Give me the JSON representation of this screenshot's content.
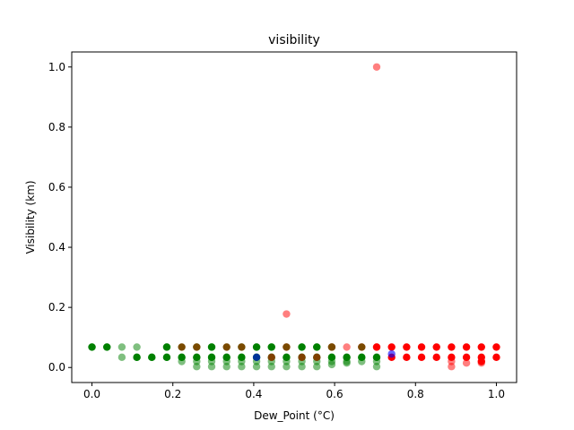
{
  "chart_data": {
    "type": "scatter",
    "title": "visibility",
    "xlabel": "Dew_Point (°C)",
    "ylabel": "Visibility (km)",
    "xlim": [
      -0.05,
      1.05
    ],
    "ylim": [
      -0.05,
      1.05
    ],
    "xticks": [
      "0.0",
      "0.2",
      "0.4",
      "0.6",
      "0.8",
      "1.0"
    ],
    "yticks": [
      "0.0",
      "0.2",
      "0.4",
      "0.6",
      "0.8",
      "1.0"
    ],
    "grid": false,
    "series": [
      {
        "color": "#008000",
        "opacity": 0.5,
        "points": [
          [
            0.0,
            0.068
          ],
          [
            0.037,
            0.068
          ],
          [
            0.074,
            0.068
          ],
          [
            0.074,
            0.034
          ],
          [
            0.111,
            0.068
          ],
          [
            0.111,
            0.034
          ],
          [
            0.148,
            0.034
          ],
          [
            0.185,
            0.068
          ],
          [
            0.185,
            0.034
          ],
          [
            0.222,
            0.034
          ],
          [
            0.222,
            0.02
          ],
          [
            0.259,
            0.068
          ],
          [
            0.259,
            0.034
          ],
          [
            0.259,
            0.02
          ],
          [
            0.259,
            0.003
          ],
          [
            0.296,
            0.068
          ],
          [
            0.296,
            0.034
          ],
          [
            0.296,
            0.02
          ],
          [
            0.296,
            0.003
          ],
          [
            0.333,
            0.034
          ],
          [
            0.333,
            0.02
          ],
          [
            0.333,
            0.003
          ],
          [
            0.37,
            0.068
          ],
          [
            0.37,
            0.034
          ],
          [
            0.37,
            0.02
          ],
          [
            0.37,
            0.003
          ],
          [
            0.407,
            0.068
          ],
          [
            0.407,
            0.034
          ],
          [
            0.407,
            0.02
          ],
          [
            0.407,
            0.003
          ],
          [
            0.444,
            0.068
          ],
          [
            0.444,
            0.034
          ],
          [
            0.444,
            0.02
          ],
          [
            0.444,
            0.003
          ],
          [
            0.481,
            0.034
          ],
          [
            0.481,
            0.02
          ],
          [
            0.481,
            0.003
          ],
          [
            0.519,
            0.068
          ],
          [
            0.519,
            0.034
          ],
          [
            0.519,
            0.02
          ],
          [
            0.519,
            0.003
          ],
          [
            0.556,
            0.068
          ],
          [
            0.556,
            0.034
          ],
          [
            0.556,
            0.02
          ],
          [
            0.556,
            0.003
          ],
          [
            0.593,
            0.068
          ],
          [
            0.593,
            0.034
          ],
          [
            0.593,
            0.02
          ],
          [
            0.593,
            0.01
          ],
          [
            0.63,
            0.034
          ],
          [
            0.63,
            0.02
          ],
          [
            0.63,
            0.015
          ],
          [
            0.667,
            0.034
          ],
          [
            0.667,
            0.02
          ],
          [
            0.704,
            0.034
          ],
          [
            0.704,
            0.02
          ],
          [
            0.704,
            0.003
          ]
        ]
      },
      {
        "color": "#008000",
        "opacity": 1.0,
        "points": [
          [
            0.0,
            0.068
          ],
          [
            0.037,
            0.068
          ],
          [
            0.111,
            0.034
          ],
          [
            0.148,
            0.034
          ],
          [
            0.185,
            0.068
          ],
          [
            0.185,
            0.034
          ],
          [
            0.222,
            0.034
          ],
          [
            0.259,
            0.034
          ],
          [
            0.296,
            0.068
          ],
          [
            0.296,
            0.034
          ],
          [
            0.333,
            0.034
          ],
          [
            0.37,
            0.034
          ],
          [
            0.407,
            0.068
          ],
          [
            0.407,
            0.034
          ],
          [
            0.444,
            0.068
          ],
          [
            0.444,
            0.034
          ],
          [
            0.481,
            0.034
          ],
          [
            0.519,
            0.068
          ],
          [
            0.519,
            0.034
          ],
          [
            0.556,
            0.068
          ],
          [
            0.556,
            0.034
          ],
          [
            0.593,
            0.034
          ],
          [
            0.63,
            0.034
          ],
          [
            0.667,
            0.034
          ],
          [
            0.704,
            0.034
          ]
        ]
      },
      {
        "color": "#ff0000",
        "opacity": 0.5,
        "points": [
          [
            0.704,
            1.0
          ],
          [
            0.481,
            0.178
          ],
          [
            0.444,
            0.034
          ],
          [
            0.481,
            0.068
          ],
          [
            0.519,
            0.034
          ],
          [
            0.556,
            0.034
          ],
          [
            0.593,
            0.068
          ],
          [
            0.63,
            0.068
          ],
          [
            0.667,
            0.068
          ],
          [
            0.704,
            0.068
          ],
          [
            0.889,
            0.003
          ],
          [
            0.926,
            0.015
          ],
          [
            0.963,
            0.015
          ],
          [
            0.889,
            0.02
          ]
        ]
      },
      {
        "color": "#ff0000",
        "opacity": 1.0,
        "points": [
          [
            0.704,
            0.068
          ],
          [
            0.741,
            0.068
          ],
          [
            0.741,
            0.034
          ],
          [
            0.778,
            0.068
          ],
          [
            0.778,
            0.034
          ],
          [
            0.815,
            0.068
          ],
          [
            0.815,
            0.034
          ],
          [
            0.852,
            0.068
          ],
          [
            0.852,
            0.034
          ],
          [
            0.889,
            0.068
          ],
          [
            0.889,
            0.034
          ],
          [
            0.926,
            0.068
          ],
          [
            0.926,
            0.034
          ],
          [
            0.963,
            0.068
          ],
          [
            0.963,
            0.034
          ],
          [
            0.963,
            0.02
          ],
          [
            1.0,
            0.068
          ],
          [
            1.0,
            0.034
          ]
        ]
      },
      {
        "color": "#7a4a00",
        "opacity": 1.0,
        "points": [
          [
            0.222,
            0.068
          ],
          [
            0.259,
            0.068
          ],
          [
            0.333,
            0.068
          ],
          [
            0.37,
            0.068
          ],
          [
            0.481,
            0.068
          ],
          [
            0.593,
            0.068
          ],
          [
            0.667,
            0.068
          ]
        ]
      },
      {
        "color": "#0000ff",
        "opacity": 0.6,
        "points": [
          [
            0.407,
            0.034
          ],
          [
            0.741,
            0.045
          ]
        ]
      }
    ]
  }
}
